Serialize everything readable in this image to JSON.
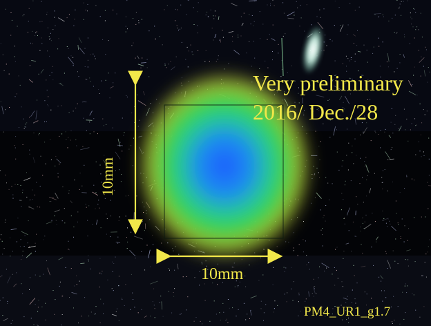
{
  "annotation": {
    "status_line": "Very preliminary",
    "date_line": "2016/ Dec./28"
  },
  "dimensions": {
    "vertical_label": "10mm",
    "horizontal_label": "10mm"
  },
  "caption": "PM4_UR1_g1.7",
  "colors": {
    "annotation": "#f2e84a",
    "background": "#070810",
    "spot_core": "#1f6bff",
    "spot_mid": "#2bd66a",
    "spot_edge": "#d8d640"
  }
}
